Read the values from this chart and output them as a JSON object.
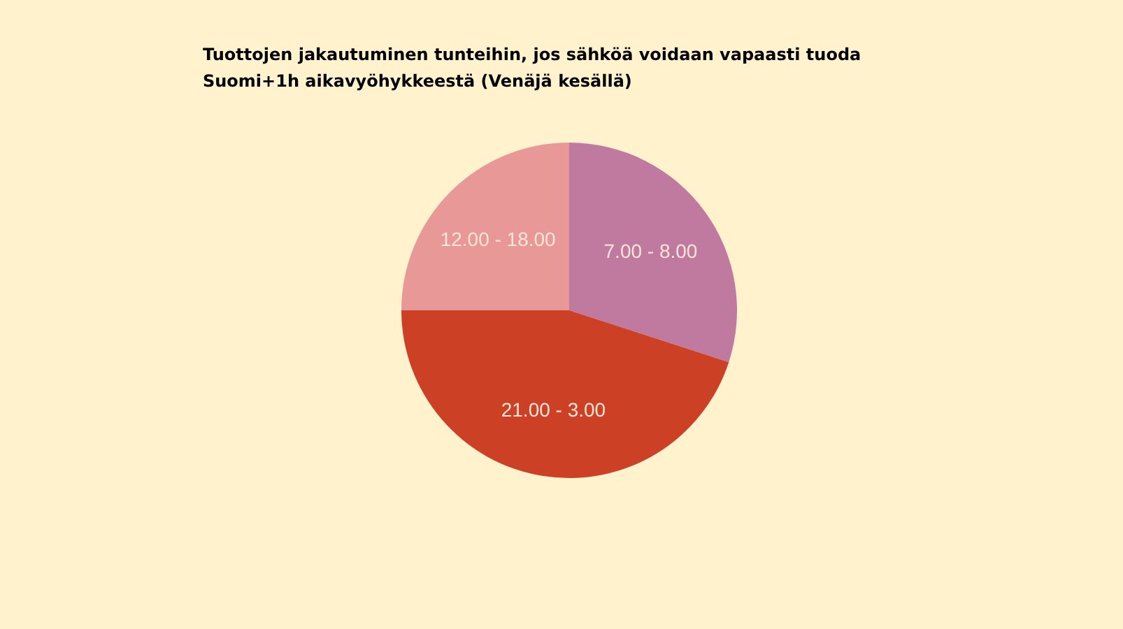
{
  "chart_data": {
    "type": "pie",
    "title": "Tuottojen jakautuminen tunteihin, jos sähköä voidaan vapaasti tuoda Suomi+1h aikavyöhykkeestä (Venäjä kesällä)",
    "categories": [
      "7.00 - 8.00",
      "21.00 - 3.00",
      "12.00 - 18.00"
    ],
    "values": [
      30,
      45,
      25
    ],
    "colors": [
      "#c07aa0",
      "#cc4125",
      "#e89896"
    ]
  }
}
